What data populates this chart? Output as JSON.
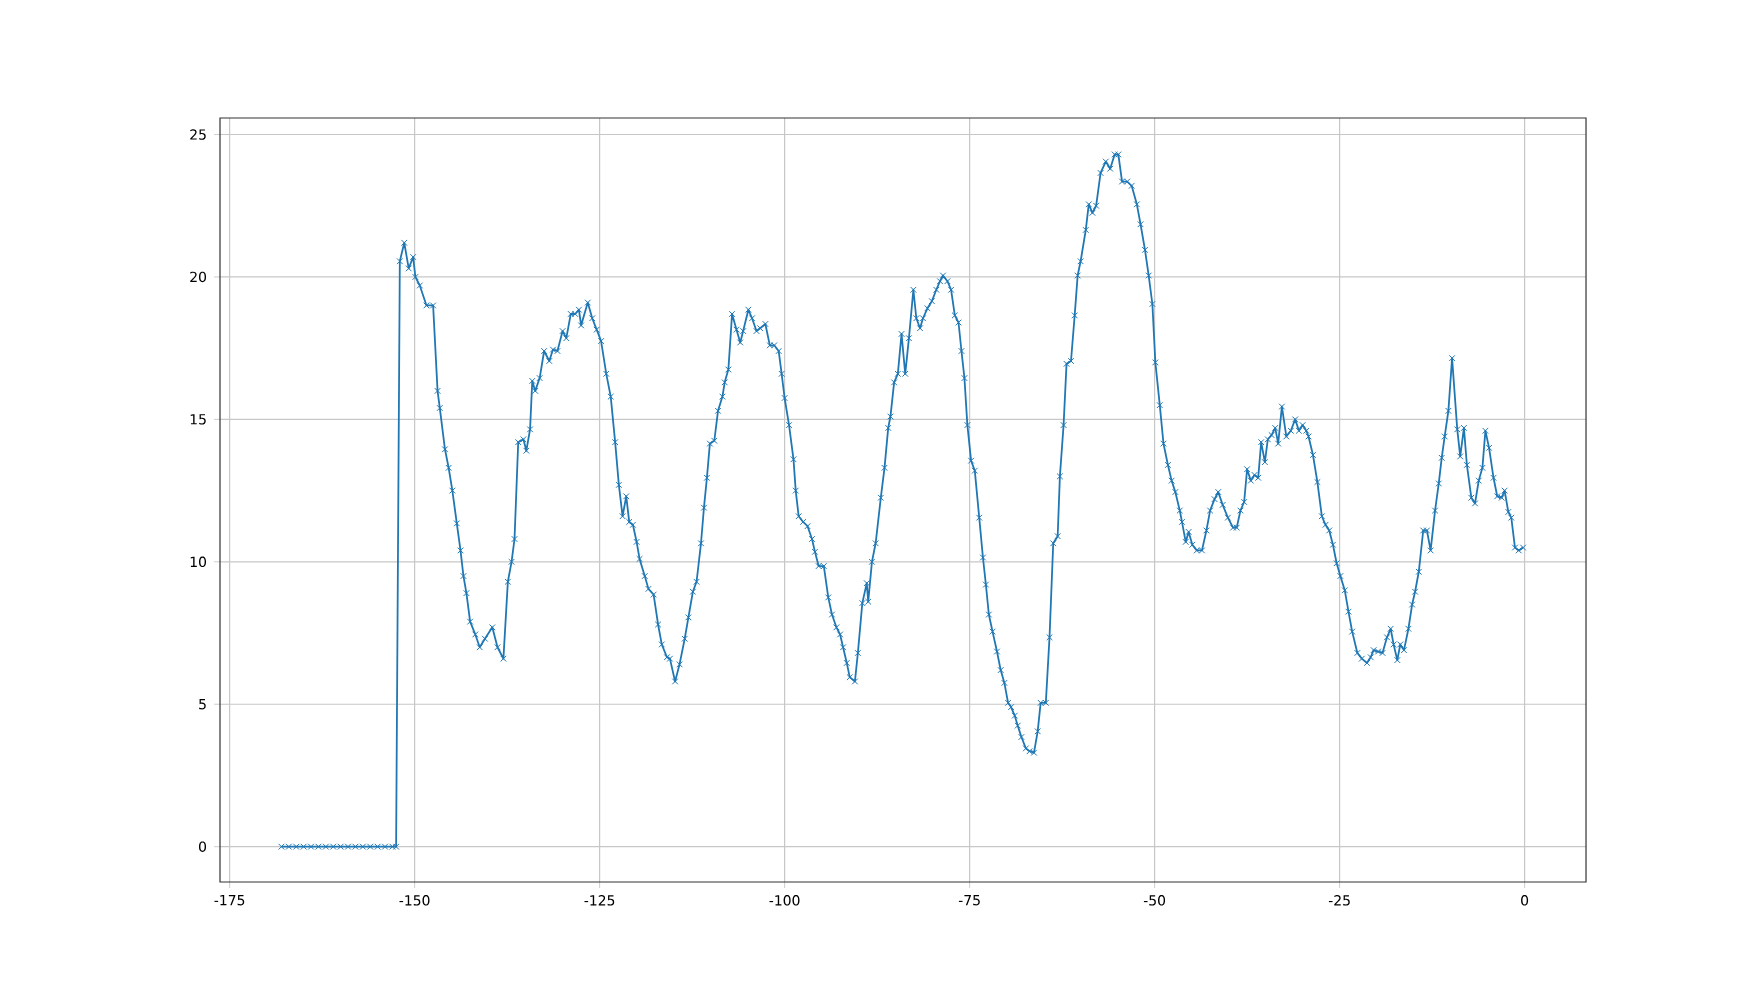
{
  "chart_data": {
    "type": "line",
    "color": "#1f77b4",
    "marker": "cross",
    "grid": true,
    "xlim": [
      -176.3,
      8.3
    ],
    "ylim": [
      -1.24,
      25.58
    ],
    "xticks": [
      -175,
      -150,
      -125,
      -100,
      -75,
      -50,
      -25,
      0
    ],
    "yticks": [
      0,
      5,
      10,
      15,
      20,
      25
    ],
    "x": [
      -168,
      -167,
      -166,
      -165,
      -164,
      -163,
      -162,
      -161,
      -160,
      -159,
      -158,
      -157,
      -156,
      -155,
      -154,
      -153,
      -152.5,
      -152.0,
      -151.4,
      -150.8,
      -150.2,
      -149.9,
      -149.3,
      -148.4,
      -147.5,
      -146.9,
      -146.6,
      -145.9,
      -145.4,
      -144.9,
      -144.3,
      -143.8,
      -143.4,
      -143.0,
      -142.5,
      -141.8,
      -141.2,
      -140.5,
      -139.5,
      -138.8,
      -138.0,
      -137.4,
      -136.9,
      -136.5,
      -136.0,
      -135.3,
      -134.9,
      -134.4,
      -134.1,
      -133.7,
      -133.1,
      -132.5,
      -131.8,
      -131.3,
      -130.7,
      -130.0,
      -129.5,
      -128.9,
      -128.3,
      -127.8,
      -127.5,
      -126.6,
      -126.0,
      -125.4,
      -124.8,
      -124.1,
      -123.5,
      -122.9,
      -122.4,
      -121.9,
      -121.4,
      -121.0,
      -120.5,
      -120.0,
      -119.6,
      -118.9,
      -118.4,
      -117.7,
      -117.1,
      -116.6,
      -115.9,
      -115.5,
      -114.8,
      -114.2,
      -113.5,
      -113.0,
      -112.4,
      -111.9,
      -111.3,
      -110.9,
      -110.5,
      -110.1,
      -109.5,
      -109.0,
      -108.4,
      -108.1,
      -107.6,
      -107.1,
      -106.5,
      -106.0,
      -105.6,
      -104.9,
      -104.4,
      -103.8,
      -103.3,
      -102.6,
      -102.0,
      -101.4,
      -100.8,
      -100.4,
      -100.0,
      -99.4,
      -98.8,
      -98.5,
      -98.1,
      -97.5,
      -96.9,
      -96.3,
      -95.9,
      -95.4,
      -94.7,
      -94.1,
      -93.6,
      -93.0,
      -92.5,
      -92.1,
      -91.6,
      -91.2,
      -90.5,
      -90.1,
      -89.5,
      -88.9,
      -88.7,
      -88.2,
      -87.7,
      -87.0,
      -86.5,
      -86.0,
      -85.7,
      -85.2,
      -84.7,
      -84.2,
      -83.7,
      -83.2,
      -82.6,
      -82.2,
      -81.7,
      -81.3,
      -80.7,
      -80.1,
      -79.5,
      -79.0,
      -78.6,
      -78.0,
      -77.5,
      -77.0,
      -76.5,
      -76.1,
      -75.7,
      -75.3,
      -74.8,
      -74.3,
      -73.7,
      -73.2,
      -72.8,
      -72.4,
      -71.9,
      -71.3,
      -70.8,
      -70.3,
      -69.8,
      -69.4,
      -68.9,
      -68.5,
      -68.0,
      -67.4,
      -66.9,
      -66.3,
      -65.8,
      -65.4,
      -64.7,
      -64.2,
      -63.7,
      -63.1,
      -62.8,
      -62.3,
      -61.9,
      -61.3,
      -60.8,
      -60.4,
      -60.0,
      -59.3,
      -58.9,
      -58.4,
      -57.9,
      -57.3,
      -56.6,
      -56.0,
      -55.4,
      -54.9,
      -54.4,
      -53.7,
      -53.1,
      -52.4,
      -51.9,
      -51.3,
      -50.8,
      -50.3,
      -49.9,
      -49.3,
      -48.8,
      -48.2,
      -47.7,
      -47.2,
      -46.6,
      -46.3,
      -45.8,
      -45.4,
      -44.9,
      -44.3,
      -43.6,
      -43.0,
      -42.5,
      -41.9,
      -41.4,
      -40.8,
      -40.1,
      -39.4,
      -38.9,
      -38.4,
      -37.9,
      -37.5,
      -37.0,
      -36.5,
      -36.0,
      -35.6,
      -35.1,
      -34.7,
      -34.2,
      -33.7,
      -33.3,
      -32.8,
      -32.2,
      -31.6,
      -31.0,
      -30.5,
      -30.0,
      -29.5,
      -29.2,
      -28.6,
      -28.0,
      -27.4,
      -26.9,
      -26.4,
      -25.9,
      -25.4,
      -24.9,
      -24.3,
      -23.8,
      -23.3,
      -22.6,
      -22.0,
      -21.3,
      -20.8,
      -20.4,
      -19.8,
      -19.2,
      -18.6,
      -18.1,
      -17.7,
      -17.2,
      -16.8,
      -16.3,
      -15.7,
      -15.2,
      -14.8,
      -14.3,
      -13.7,
      -13.2,
      -12.7,
      -12.1,
      -11.6,
      -11.2,
      -10.8,
      -10.3,
      -9.8,
      -9.1,
      -8.7,
      -8.2,
      -7.8,
      -7.2,
      -6.7,
      -6.2,
      -5.7,
      -5.3,
      -4.8,
      -4.2,
      -3.7,
      -3.1,
      -2.7,
      -2.2,
      -1.8,
      -1.3,
      -0.8,
      -0.2
    ],
    "values": [
      0,
      0,
      0,
      0,
      0,
      0,
      0,
      0,
      0,
      0,
      0,
      0,
      0,
      0,
      0,
      0,
      0,
      20.55,
      21.2,
      20.3,
      20.7,
      20.0,
      19.7,
      19.0,
      19.0,
      16.0,
      15.4,
      13.95,
      13.3,
      12.5,
      11.35,
      10.4,
      9.5,
      8.9,
      7.9,
      7.45,
      7.0,
      7.3,
      7.7,
      7.0,
      6.6,
      9.3,
      10.0,
      10.8,
      14.2,
      14.3,
      13.9,
      14.65,
      16.35,
      16.0,
      16.45,
      17.4,
      17.05,
      17.45,
      17.4,
      18.1,
      17.85,
      18.7,
      18.7,
      18.85,
      18.3,
      19.1,
      18.55,
      18.15,
      17.75,
      16.6,
      15.8,
      14.2,
      12.7,
      11.6,
      12.3,
      11.4,
      11.3,
      10.7,
      10.1,
      9.5,
      9.05,
      8.85,
      7.8,
      7.1,
      6.65,
      6.6,
      5.8,
      6.4,
      7.3,
      8.05,
      8.95,
      9.3,
      10.65,
      11.9,
      12.95,
      14.15,
      14.25,
      15.3,
      15.8,
      16.3,
      16.75,
      18.7,
      18.15,
      17.7,
      18.1,
      18.85,
      18.55,
      18.1,
      18.2,
      18.35,
      17.6,
      17.6,
      17.4,
      16.6,
      15.75,
      14.8,
      13.6,
      12.5,
      11.6,
      11.4,
      11.25,
      10.8,
      10.35,
      9.85,
      9.85,
      8.75,
      8.15,
      7.7,
      7.45,
      7.0,
      6.45,
      5.95,
      5.8,
      6.8,
      8.55,
      9.25,
      8.6,
      10.0,
      10.65,
      12.25,
      13.3,
      14.7,
      15.1,
      16.3,
      16.6,
      18.0,
      16.6,
      17.85,
      19.55,
      18.55,
      18.2,
      18.55,
      18.9,
      19.15,
      19.55,
      19.85,
      20.05,
      19.85,
      19.55,
      18.65,
      18.4,
      17.4,
      16.45,
      14.8,
      13.55,
      13.2,
      11.55,
      10.15,
      9.2,
      8.15,
      7.55,
      6.85,
      6.2,
      5.75,
      5.05,
      4.9,
      4.6,
      4.25,
      3.85,
      3.45,
      3.35,
      3.3,
      4.05,
      5.05,
      5.05,
      7.35,
      10.65,
      10.9,
      13.0,
      14.8,
      16.95,
      17.05,
      18.65,
      20.05,
      20.55,
      21.65,
      22.55,
      22.25,
      22.5,
      23.65,
      24.05,
      23.8,
      24.3,
      24.3,
      23.35,
      23.35,
      23.2,
      22.55,
      21.85,
      20.95,
      20.05,
      19.05,
      17.0,
      15.5,
      14.15,
      13.4,
      12.85,
      12.45,
      11.8,
      11.4,
      10.7,
      11.05,
      10.6,
      10.4,
      10.4,
      11.1,
      11.8,
      12.2,
      12.45,
      12.0,
      11.55,
      11.2,
      11.2,
      11.8,
      12.1,
      13.25,
      12.85,
      13.05,
      12.95,
      14.2,
      13.5,
      14.3,
      14.45,
      14.7,
      14.15,
      15.45,
      14.4,
      14.6,
      15.0,
      14.6,
      14.8,
      14.6,
      14.4,
      13.75,
      12.8,
      11.6,
      11.3,
      11.1,
      10.6,
      9.95,
      9.5,
      9.0,
      8.25,
      7.55,
      6.8,
      6.6,
      6.45,
      6.65,
      6.9,
      6.85,
      6.8,
      7.35,
      7.65,
      7.1,
      6.55,
      7.1,
      6.9,
      7.65,
      8.5,
      8.95,
      9.65,
      11.1,
      11.1,
      10.4,
      11.8,
      12.75,
      13.65,
      14.4,
      15.3,
      17.15,
      14.65,
      13.7,
      14.7,
      13.4,
      12.25,
      12.05,
      12.85,
      13.3,
      14.6,
      14.0,
      12.95,
      12.3,
      12.25,
      12.5,
      11.75,
      11.55,
      10.5,
      10.4,
      10.5
    ]
  }
}
